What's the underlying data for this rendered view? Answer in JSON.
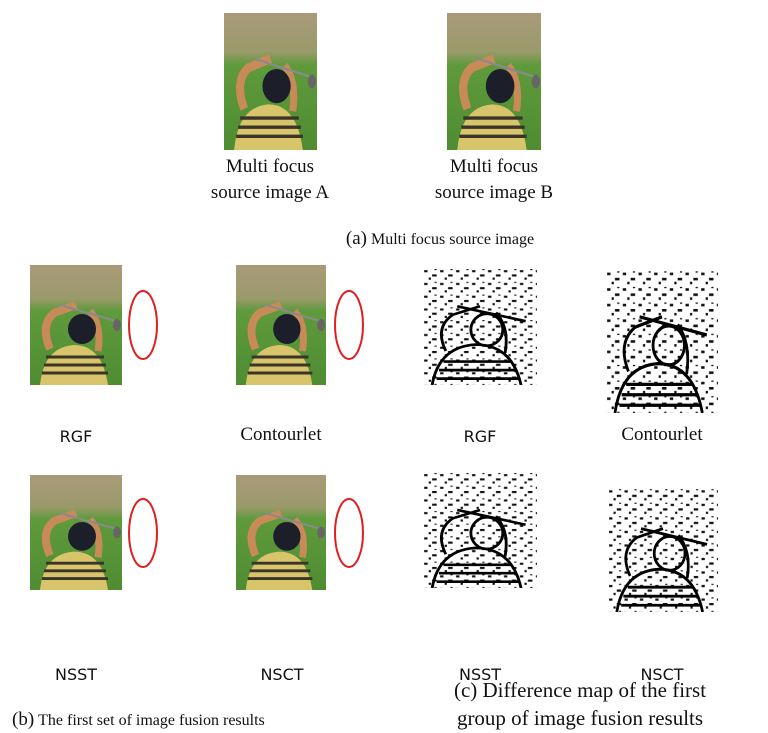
{
  "source_images": {
    "items": [
      {
        "caption_lines": [
          "Multi focus",
          "source image A"
        ]
      },
      {
        "caption_lines": [
          "Multi focus",
          "source image B"
        ]
      }
    ],
    "caption_tag": "(a)",
    "caption_text": "Multi focus source image"
  },
  "fusion_results": {
    "labels": [
      "RGF",
      "Contourlet",
      "NSST",
      "NSCT"
    ],
    "caption_tag": "(b)",
    "caption_text": "The first set of image fusion results"
  },
  "difference_maps": {
    "labels": [
      "RGF",
      "Contourlet",
      "NSST",
      "NSCT"
    ],
    "caption_lines": [
      "(c) Difference map of the first",
      "group of image fusion results"
    ]
  }
}
